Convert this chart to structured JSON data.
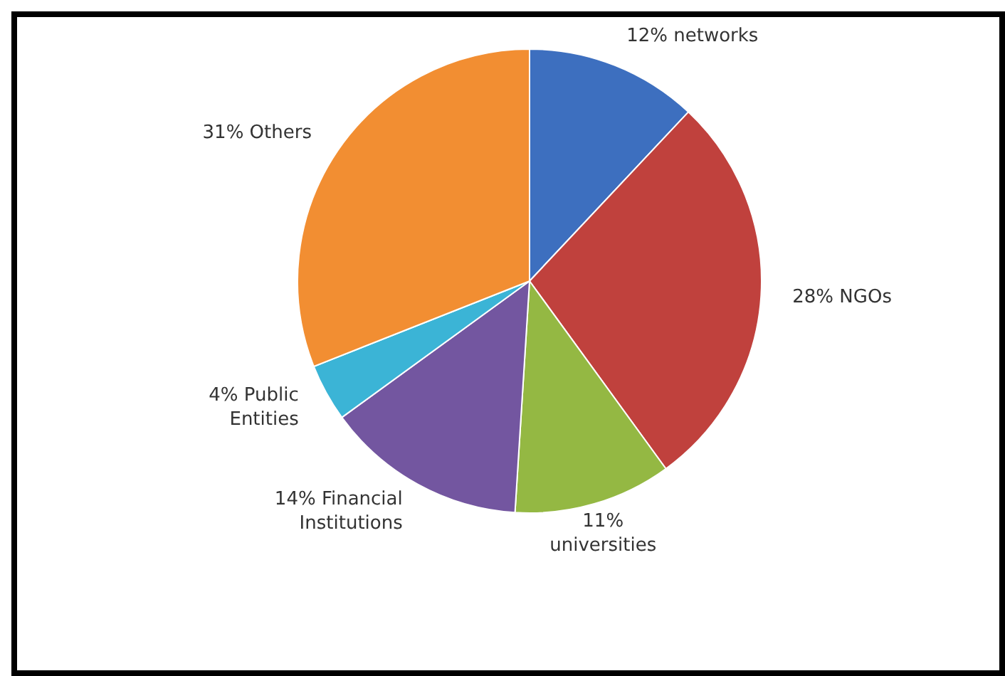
{
  "chart_data": {
    "type": "pie",
    "categories": [
      "networks",
      "NGOs",
      "universities",
      "Financial Institutions",
      "Public Entities",
      "Others"
    ],
    "values": [
      12,
      28,
      11,
      14,
      4,
      31
    ],
    "value_labels": [
      "12%",
      "28%",
      "11%",
      "14%",
      "4%",
      "31%"
    ],
    "colors": [
      "#3d6fbf",
      "#c0413d",
      "#94b843",
      "#7356a0",
      "#3bb4d6",
      "#f28e32"
    ],
    "legend": false
  }
}
